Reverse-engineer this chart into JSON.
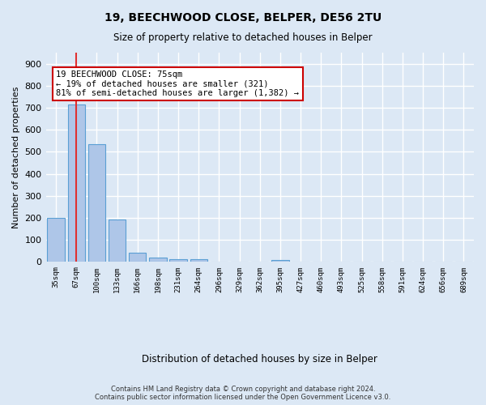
{
  "title1": "19, BEECHWOOD CLOSE, BELPER, DE56 2TU",
  "title2": "Size of property relative to detached houses in Belper",
  "xlabel": "Distribution of detached houses by size in Belper",
  "ylabel": "Number of detached properties",
  "categories": [
    "35sqm",
    "67sqm",
    "100sqm",
    "133sqm",
    "166sqm",
    "198sqm",
    "231sqm",
    "264sqm",
    "296sqm",
    "329sqm",
    "362sqm",
    "395sqm",
    "427sqm",
    "460sqm",
    "493sqm",
    "525sqm",
    "558sqm",
    "591sqm",
    "624sqm",
    "656sqm",
    "689sqm"
  ],
  "values": [
    200,
    715,
    535,
    193,
    42,
    20,
    14,
    12,
    0,
    0,
    0,
    10,
    0,
    0,
    0,
    0,
    0,
    0,
    0,
    0,
    0
  ],
  "bar_color": "#aec6e8",
  "bar_edge_color": "#5a9fd4",
  "highlight_bar_index": 1,
  "highlight_line_color": "#e03030",
  "ylim": [
    0,
    950
  ],
  "yticks": [
    0,
    100,
    200,
    300,
    400,
    500,
    600,
    700,
    800,
    900
  ],
  "annotation_line1": "19 BEECHWOOD CLOSE: 75sqm",
  "annotation_line2": "← 19% of detached houses are smaller (321)",
  "annotation_line3": "81% of semi-detached houses are larger (1,382) →",
  "annotation_box_color": "#ffffff",
  "annotation_box_edgecolor": "#cc0000",
  "footer": "Contains HM Land Registry data © Crown copyright and database right 2024.\nContains public sector information licensed under the Open Government Licence v3.0.",
  "bg_color": "#dce8f5",
  "plot_bg_color": "#dce8f5",
  "grid_color": "#ffffff"
}
